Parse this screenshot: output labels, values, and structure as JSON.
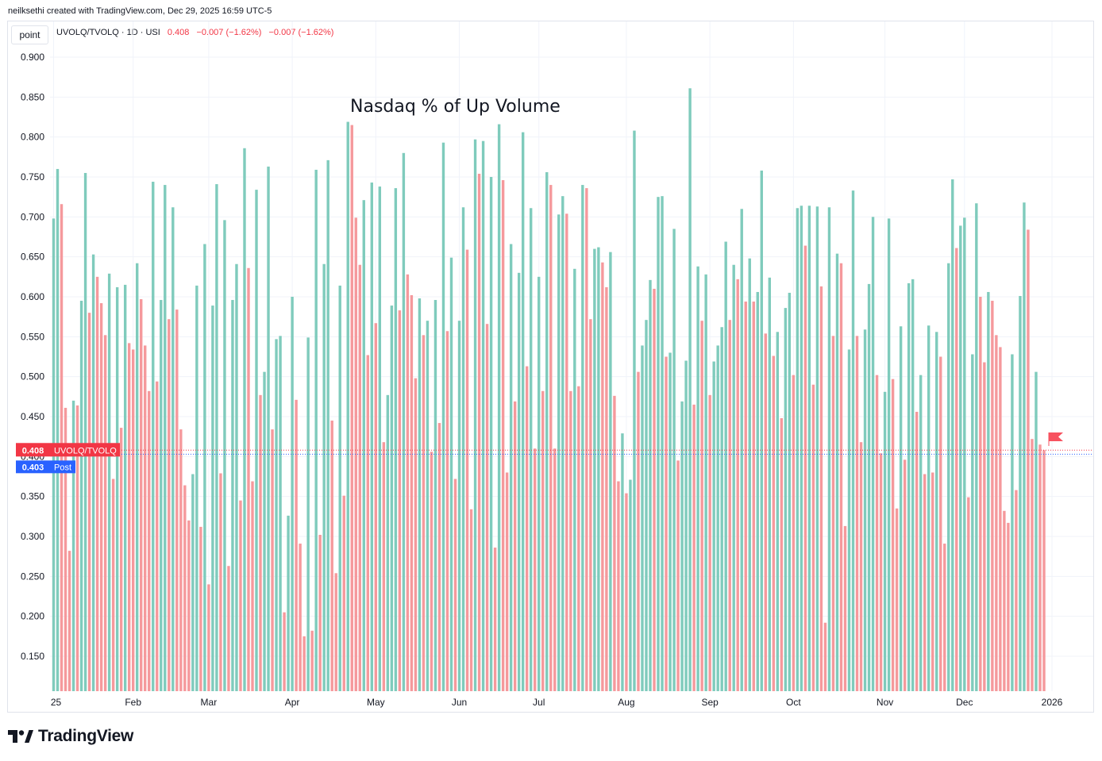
{
  "header": {
    "credit": "neilksethi created with TradingView.com, Dec 29, 2025 16:59 UTC-5",
    "point_button": "point",
    "symbol": "UVOLQ/TVOLQ · 1D · USI",
    "last": "0.408",
    "change1": "−0.007 (−1.62%)",
    "change2": "−0.007 (−1.62%)"
  },
  "footer": {
    "brand": "TradingView"
  },
  "colors": {
    "up": "#7fcbbc",
    "down": "#f5999c",
    "last_tag": "#f23645",
    "post_tag": "#2962ff",
    "grid": "#f0f3fa"
  },
  "chart_data": {
    "type": "bar",
    "title": "Nasdaq % of Up Volume",
    "ylim": [
      0.105,
      0.91
    ],
    "y_ticks": [
      "0.900",
      "0.850",
      "0.800",
      "0.750",
      "0.700",
      "0.650",
      "0.600",
      "0.550",
      "0.500",
      "0.450",
      "0.400",
      "0.350",
      "0.300",
      "0.250",
      "0.200",
      "0.150"
    ],
    "x_ticks": [
      {
        "label": "25",
        "index": 0
      },
      {
        "label": "Feb",
        "index": 20
      },
      {
        "label": "Mar",
        "index": 39
      },
      {
        "label": "Apr",
        "index": 60
      },
      {
        "label": "May",
        "index": 81
      },
      {
        "label": "Jun",
        "index": 102
      },
      {
        "label": "Jul",
        "index": 122
      },
      {
        "label": "Aug",
        "index": 144
      },
      {
        "label": "Sep",
        "index": 165
      },
      {
        "label": "Oct",
        "index": 186
      },
      {
        "label": "Nov",
        "index": 209
      },
      {
        "label": "Dec",
        "index": 229
      },
      {
        "label": "2026",
        "index": 251
      }
    ],
    "values": [
      0.698,
      0.76,
      0.716,
      0.461,
      0.282,
      0.47,
      0.464,
      0.595,
      0.755,
      0.58,
      0.653,
      0.625,
      0.592,
      0.552,
      0.629,
      0.372,
      0.612,
      0.436,
      0.615,
      0.542,
      0.534,
      0.642,
      0.597,
      0.539,
      0.482,
      0.744,
      0.494,
      0.596,
      0.74,
      0.572,
      0.712,
      0.584,
      0.434,
      0.364,
      0.32,
      0.378,
      0.614,
      0.312,
      0.666,
      0.24,
      0.589,
      0.741,
      0.379,
      0.696,
      0.263,
      0.596,
      0.641,
      0.345,
      0.786,
      0.636,
      0.369,
      0.734,
      0.477,
      0.506,
      0.763,
      0.434,
      0.547,
      0.551,
      0.205,
      0.326,
      0.6,
      0.471,
      0.291,
      0.175,
      0.549,
      0.182,
      0.759,
      0.302,
      0.641,
      0.771,
      0.445,
      0.254,
      0.614,
      0.351,
      0.819,
      0.815,
      0.699,
      0.64,
      0.721,
      0.527,
      0.743,
      0.567,
      0.738,
      0.418,
      0.477,
      0.589,
      0.736,
      0.583,
      0.78,
      0.628,
      0.602,
      0.498,
      0.598,
      0.552,
      0.57,
      0.406,
      0.596,
      0.442,
      0.793,
      0.557,
      0.649,
      0.372,
      0.57,
      0.712,
      0.659,
      0.334,
      0.797,
      0.754,
      0.795,
      0.566,
      0.75,
      0.286,
      0.816,
      0.746,
      0.38,
      0.666,
      0.469,
      0.63,
      0.806,
      0.513,
      0.711,
      0.41,
      0.625,
      0.482,
      0.756,
      0.74,
      0.41,
      0.703,
      0.726,
      0.704,
      0.482,
      0.635,
      0.488,
      0.74,
      0.736,
      0.572,
      0.66,
      0.662,
      0.643,
      0.612,
      0.656,
      0.476,
      0.369,
      0.429,
      0.354,
      0.371,
      0.808,
      0.506,
      0.539,
      0.571,
      0.621,
      0.61,
      0.725,
      0.726,
      0.525,
      0.53,
      0.685,
      0.395,
      0.469,
      0.52,
      0.861,
      0.465,
      0.638,
      0.57,
      0.628,
      0.477,
      0.519,
      0.539,
      0.562,
      0.669,
      0.571,
      0.64,
      0.622,
      0.71,
      0.594,
      0.648,
      0.594,
      0.606,
      0.758,
      0.554,
      0.624,
      0.526,
      0.556,
      0.448,
      0.586,
      0.605,
      0.502,
      0.711,
      0.714,
      0.664,
      0.714,
      0.49,
      0.713,
      0.613,
      0.192,
      0.712,
      0.551,
      0.654,
      0.642,
      0.313,
      0.534,
      0.733,
      0.551,
      0.418,
      0.559,
      0.616,
      0.7,
      0.502,
      0.404,
      0.481,
      0.698,
      0.497,
      0.335,
      0.563,
      0.396,
      0.617,
      0.622,
      0.456,
      0.502,
      0.378,
      0.564,
      0.38,
      0.556,
      0.525,
      0.291,
      0.642,
      0.747,
      0.661,
      0.689,
      0.699,
      0.349,
      0.528,
      0.717,
      0.6,
      0.518,
      0.606,
      0.595,
      0.552,
      0.537,
      0.332,
      0.317,
      0.528,
      0.358,
      0.601,
      0.718,
      0.684,
      0.422,
      0.506,
      0.415,
      0.408
    ],
    "last_value": 0.408,
    "post_value": 0.403,
    "labels": {
      "last_tag": "UVOLQ/TVOLQ",
      "post_tag": "Post"
    }
  }
}
